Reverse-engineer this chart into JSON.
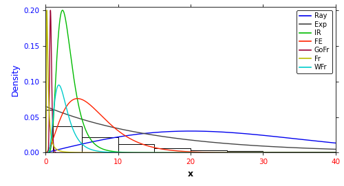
{
  "xlim": [
    0,
    40
  ],
  "ylim": [
    0,
    0.205
  ],
  "xlabel": "x",
  "ylabel": "Density",
  "xticks": [
    0,
    10,
    20,
    30,
    40
  ],
  "yticks": [
    0.0,
    0.05,
    0.1,
    0.15,
    0.2
  ],
  "legend_labels": [
    "Ray",
    "Exp",
    "IR",
    "FE",
    "GoFr",
    "Fr",
    "WFr"
  ],
  "legend_colors": [
    "#0000EE",
    "#444444",
    "#00BB00",
    "#FF2200",
    "#990033",
    "#BBBB00",
    "#00CCCC"
  ],
  "hist_bins": [
    0,
    1,
    5,
    10,
    15,
    20,
    25,
    30,
    35,
    40
  ],
  "hist_heights": [
    0.06,
    0.037,
    0.022,
    0.012,
    0.006,
    0.003,
    0.002,
    0.001,
    0.001
  ],
  "background_color": "#FFFFFF",
  "figsize": [
    5.0,
    2.71
  ],
  "dpi": 100,
  "ray_sigma": 20.0,
  "exp_lambda": 0.065,
  "ir_mu_log": 1.05,
  "ir_sigma_log": 0.45,
  "fe_shape": 3.0,
  "fe_scale": 2.2,
  "fe_scale_max": 0.076,
  "gofr_alpha": 5.0,
  "gofr_scale": 0.7,
  "gofr_max": 0.2,
  "fr_alpha": 1.5,
  "fr_scale": 0.25,
  "fr_max": 0.2,
  "wfr_mu_log": 0.85,
  "wfr_sigma_log": 0.5,
  "wfr_max": 0.095
}
